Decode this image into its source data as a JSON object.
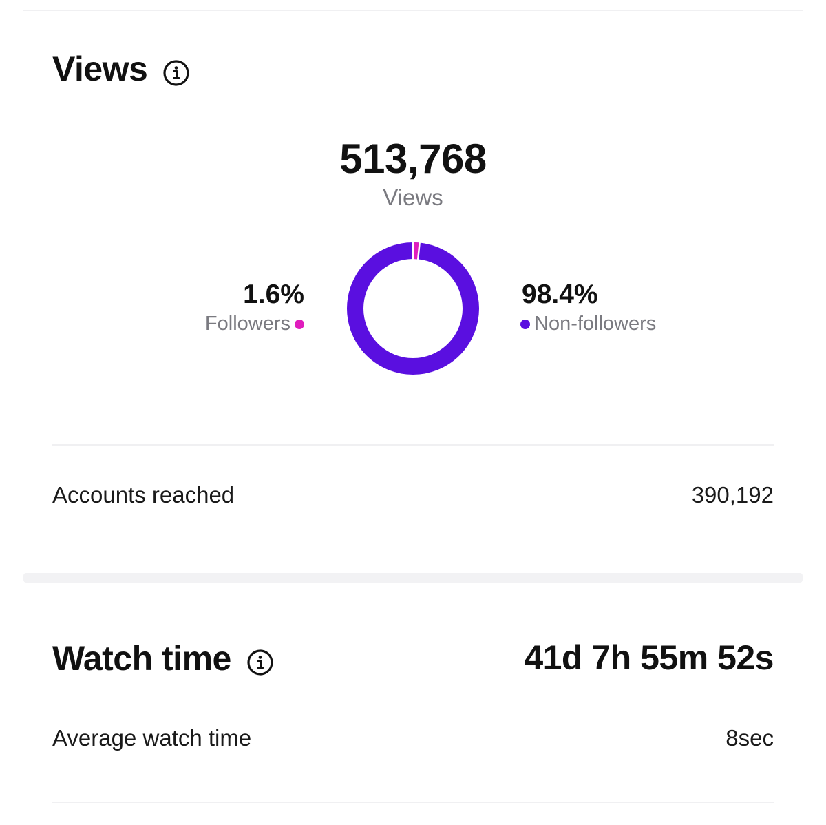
{
  "views_section": {
    "title": "Views",
    "info_icon": "info-circle-icon",
    "total": "513,768",
    "total_label": "Views",
    "donut": {
      "followers_fraction": 0.016,
      "non_followers_fraction": 0.984,
      "followers_color": "#e01dbd",
      "non_followers_color": "#5a0fe0"
    },
    "followers_pct": "1.6%",
    "followers_label": "Followers",
    "non_followers_pct": "98.4%",
    "non_followers_label": "Non-followers",
    "accounts_reached_label": "Accounts reached",
    "accounts_reached_value": "390,192"
  },
  "watch_section": {
    "title": "Watch time",
    "info_icon": "info-circle-icon",
    "total": "41d 7h 55m 52s",
    "average_label": "Average watch time",
    "average_value": "8sec"
  }
}
